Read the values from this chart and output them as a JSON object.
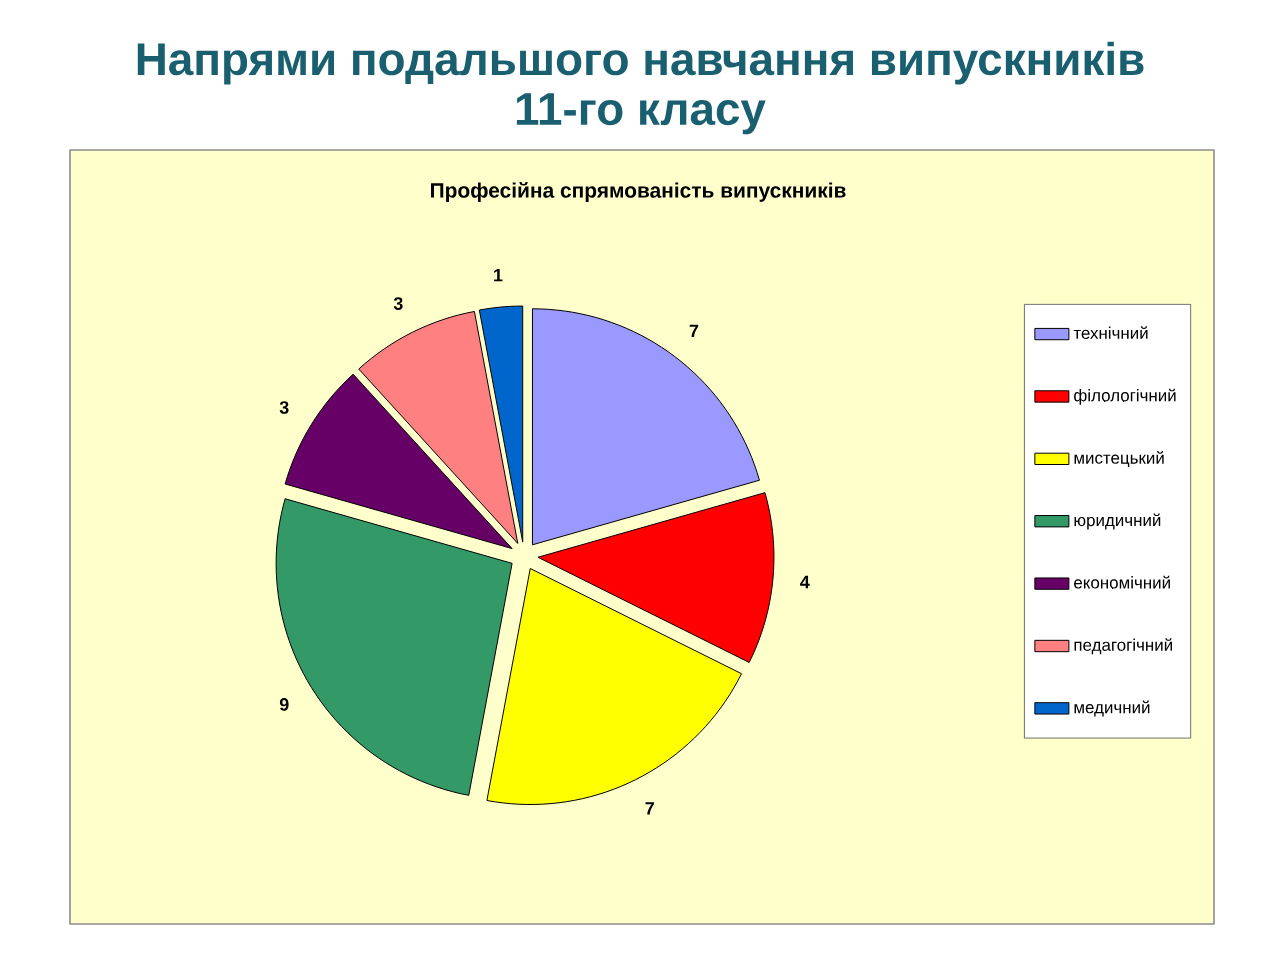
{
  "chart_data": {
    "type": "pie",
    "title": "Напрями подальшого навчання випускників 11-го класу",
    "subtitle": "Професійна спрямованість випускників",
    "categories": [
      "технічний",
      "філологічний",
      "мистецький",
      "юридичний",
      "економічний",
      "педагогічний",
      "медичний"
    ],
    "values": [
      7,
      4,
      7,
      9,
      3,
      3,
      1
    ],
    "colors": [
      "#9999ff",
      "#ff0000",
      "#ffff00",
      "#339966",
      "#660066",
      "#ff8080",
      "#0066cc"
    ],
    "data_labels": true,
    "legend": "right"
  }
}
